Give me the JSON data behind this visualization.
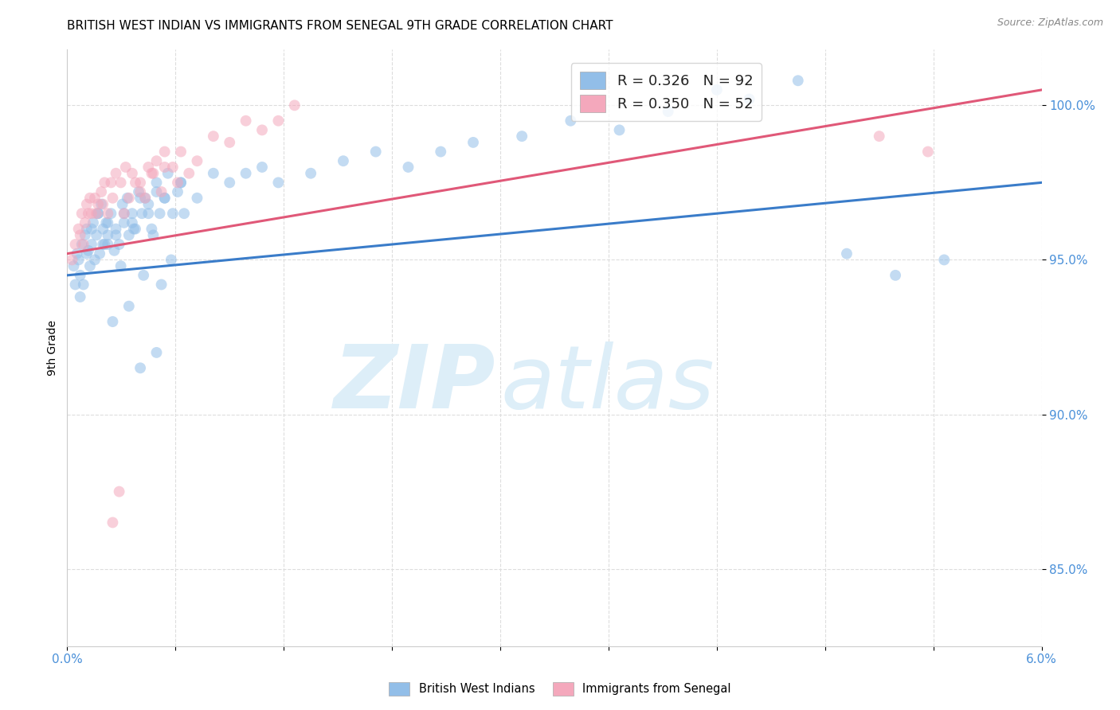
{
  "title": "BRITISH WEST INDIAN VS IMMIGRANTS FROM SENEGAL 9TH GRADE CORRELATION CHART",
  "source": "Source: ZipAtlas.com",
  "ylabel": "9th Grade",
  "xlim": [
    0.0,
    6.0
  ],
  "ylim": [
    82.5,
    101.8
  ],
  "yticks": [
    85.0,
    90.0,
    95.0,
    100.0
  ],
  "ytick_labels": [
    "85.0%",
    "90.0%",
    "95.0%",
    "100.0%"
  ],
  "xticks": [
    0.0,
    0.6667,
    1.3333,
    2.0,
    2.6667,
    3.3333,
    4.0,
    4.6667,
    5.3333,
    6.0
  ],
  "legend_blue_label": "R = 0.326   N = 92",
  "legend_pink_label": "R = 0.350   N = 52",
  "blue_scatter_x": [
    0.04,
    0.06,
    0.07,
    0.08,
    0.09,
    0.1,
    0.11,
    0.12,
    0.13,
    0.14,
    0.15,
    0.16,
    0.17,
    0.18,
    0.19,
    0.2,
    0.21,
    0.22,
    0.23,
    0.24,
    0.25,
    0.27,
    0.29,
    0.3,
    0.32,
    0.34,
    0.35,
    0.37,
    0.38,
    0.4,
    0.42,
    0.44,
    0.46,
    0.48,
    0.5,
    0.52,
    0.55,
    0.57,
    0.6,
    0.62,
    0.65,
    0.68,
    0.7,
    0.05,
    0.08,
    0.12,
    0.15,
    0.19,
    0.22,
    0.25,
    0.3,
    0.35,
    0.4,
    0.45,
    0.5,
    0.55,
    0.6,
    0.7,
    0.8,
    0.9,
    1.0,
    1.1,
    1.2,
    1.3,
    1.5,
    1.7,
    1.9,
    2.1,
    2.3,
    2.5,
    2.8,
    3.1,
    3.4,
    3.7,
    4.0,
    4.2,
    4.5,
    4.8,
    5.1,
    5.4,
    0.25,
    0.33,
    0.41,
    0.47,
    0.53,
    0.58,
    0.64,
    0.72,
    0.55,
    0.45,
    0.38,
    0.28
  ],
  "blue_scatter_y": [
    94.8,
    95.2,
    95.0,
    94.5,
    95.5,
    94.2,
    95.8,
    96.0,
    95.3,
    94.8,
    95.5,
    96.2,
    95.0,
    95.8,
    96.5,
    95.2,
    96.8,
    96.0,
    95.5,
    96.2,
    95.8,
    96.5,
    95.3,
    96.0,
    95.5,
    96.8,
    96.2,
    97.0,
    95.8,
    96.5,
    96.0,
    97.2,
    96.5,
    97.0,
    96.8,
    96.0,
    97.5,
    96.5,
    97.0,
    97.8,
    96.5,
    97.2,
    97.5,
    94.2,
    93.8,
    95.2,
    96.0,
    96.5,
    95.5,
    96.2,
    95.8,
    96.5,
    96.2,
    97.0,
    96.5,
    97.2,
    97.0,
    97.5,
    97.0,
    97.8,
    97.5,
    97.8,
    98.0,
    97.5,
    97.8,
    98.2,
    98.5,
    98.0,
    98.5,
    98.8,
    99.0,
    99.5,
    99.2,
    99.8,
    100.5,
    100.2,
    100.8,
    95.2,
    94.5,
    95.0,
    95.5,
    94.8,
    96.0,
    94.5,
    95.8,
    94.2,
    95.0,
    96.5,
    92.0,
    91.5,
    93.5,
    93.0
  ],
  "pink_scatter_x": [
    0.03,
    0.05,
    0.07,
    0.08,
    0.09,
    0.1,
    0.11,
    0.12,
    0.13,
    0.14,
    0.15,
    0.17,
    0.19,
    0.21,
    0.23,
    0.25,
    0.27,
    0.3,
    0.33,
    0.36,
    0.4,
    0.45,
    0.5,
    0.55,
    0.6,
    0.65,
    0.7,
    0.8,
    0.9,
    1.0,
    1.1,
    1.2,
    1.3,
    1.4,
    0.18,
    0.22,
    0.28,
    0.35,
    0.42,
    0.48,
    0.53,
    0.58,
    0.68,
    0.75,
    5.0,
    5.3,
    0.6,
    0.45,
    0.38,
    0.52,
    0.32,
    0.28
  ],
  "pink_scatter_y": [
    95.0,
    95.5,
    96.0,
    95.8,
    96.5,
    95.5,
    96.2,
    96.8,
    96.5,
    97.0,
    96.5,
    97.0,
    96.8,
    97.2,
    97.5,
    96.5,
    97.5,
    97.8,
    97.5,
    98.0,
    97.8,
    97.5,
    98.0,
    98.2,
    98.5,
    98.0,
    98.5,
    98.2,
    99.0,
    98.8,
    99.5,
    99.2,
    99.5,
    100.0,
    96.5,
    96.8,
    97.0,
    96.5,
    97.5,
    97.0,
    97.8,
    97.2,
    97.5,
    97.8,
    99.0,
    98.5,
    98.0,
    97.2,
    97.0,
    97.8,
    87.5,
    86.5
  ],
  "blue_line_x": [
    0.0,
    6.0
  ],
  "blue_line_y": [
    94.5,
    97.5
  ],
  "pink_line_x": [
    0.0,
    6.0
  ],
  "pink_line_y": [
    95.2,
    100.5
  ],
  "blue_color": "#92bee8",
  "pink_color": "#f4a8bc",
  "blue_line_color": "#3a7cc9",
  "pink_line_color": "#e05878",
  "scatter_alpha": 0.55,
  "scatter_size": 100,
  "watermark_zip": "ZIP",
  "watermark_atlas": "atlas",
  "watermark_color": "#ddeef8",
  "background_color": "#ffffff",
  "grid_color": "#dddddd",
  "title_fontsize": 11,
  "axis_fontsize": 10,
  "tick_color": "#4a90d9"
}
